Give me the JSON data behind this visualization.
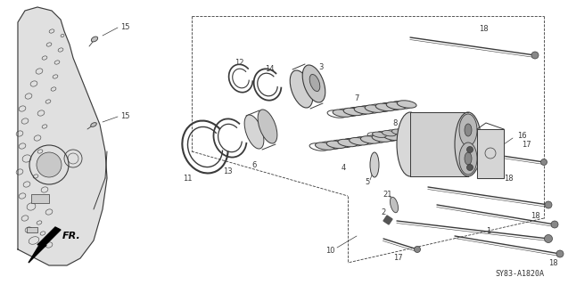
{
  "diagram_code": "SY83-A1820A",
  "background_color": "#ffffff",
  "line_color": "#3a3a3a"
}
